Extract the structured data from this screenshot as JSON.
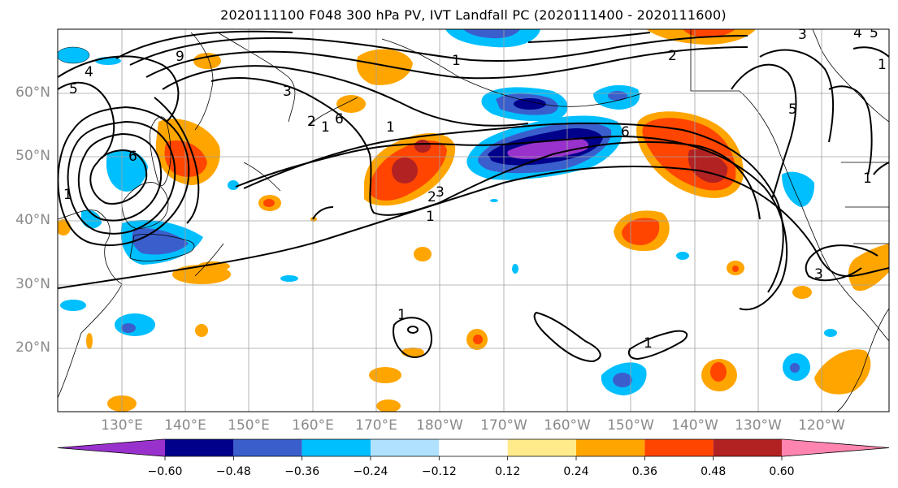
{
  "title": "2020111100 F048 300 hPa PV, IVT Landfall PC (2020111400 - 2020111600)",
  "lat_labels": [
    {
      "text": "60°N",
      "lat": 60
    },
    {
      "text": "50°N",
      "lat": 50
    },
    {
      "text": "40°N",
      "lat": 40
    },
    {
      "text": "30°N",
      "lat": 30
    },
    {
      "text": "20°N",
      "lat": 20
    }
  ],
  "lon_labels": [
    {
      "text": "130°E",
      "lon": 130
    },
    {
      "text": "140°E",
      "lon": 140
    },
    {
      "text": "150°E",
      "lon": 150
    },
    {
      "text": "160°E",
      "lon": 160
    },
    {
      "text": "170°E",
      "lon": 170
    },
    {
      "text": "180°W",
      "lon": 180
    },
    {
      "text": "170°W",
      "lon": 190
    },
    {
      "text": "160°W",
      "lon": 200
    },
    {
      "text": "150°W",
      "lon": 210
    },
    {
      "text": "140°W",
      "lon": 220
    },
    {
      "text": "130°W",
      "lon": 230
    },
    {
      "text": "120°W",
      "lon": 240
    }
  ],
  "colorbar": {
    "colors": [
      "#9932cc",
      "#00008b",
      "#3a5fcd",
      "#00bfff",
      "#b0e2ff",
      "#ffffff",
      "#ffeb8a",
      "#ffa500",
      "#ff4500",
      "#b22222",
      "#ff85b0"
    ],
    "tick_labels": [
      "−0.60",
      "−0.48",
      "−0.36",
      "−0.24",
      "−0.12",
      "0.12",
      "0.24",
      "0.36",
      "0.48",
      "0.60"
    ]
  },
  "contour_labels": [
    "4",
    "9",
    "5",
    "6",
    "3",
    "2",
    "1",
    "1",
    "6",
    "1",
    "2",
    "3",
    "1",
    "1",
    "1",
    "6",
    "2",
    "3",
    "4",
    "5",
    "1",
    "5",
    "1",
    "3",
    "1"
  ],
  "pc_colors": {
    "n60": "#9932cc",
    "n48": "#00008b",
    "n36": "#3a5fcd",
    "n24": "#00bfff",
    "n12": "#b0e2ff",
    "p12": "#ffeb8a",
    "p24": "#ffa500",
    "p36": "#ff4500",
    "p48": "#b22222",
    "p60": "#ff85b0"
  }
}
